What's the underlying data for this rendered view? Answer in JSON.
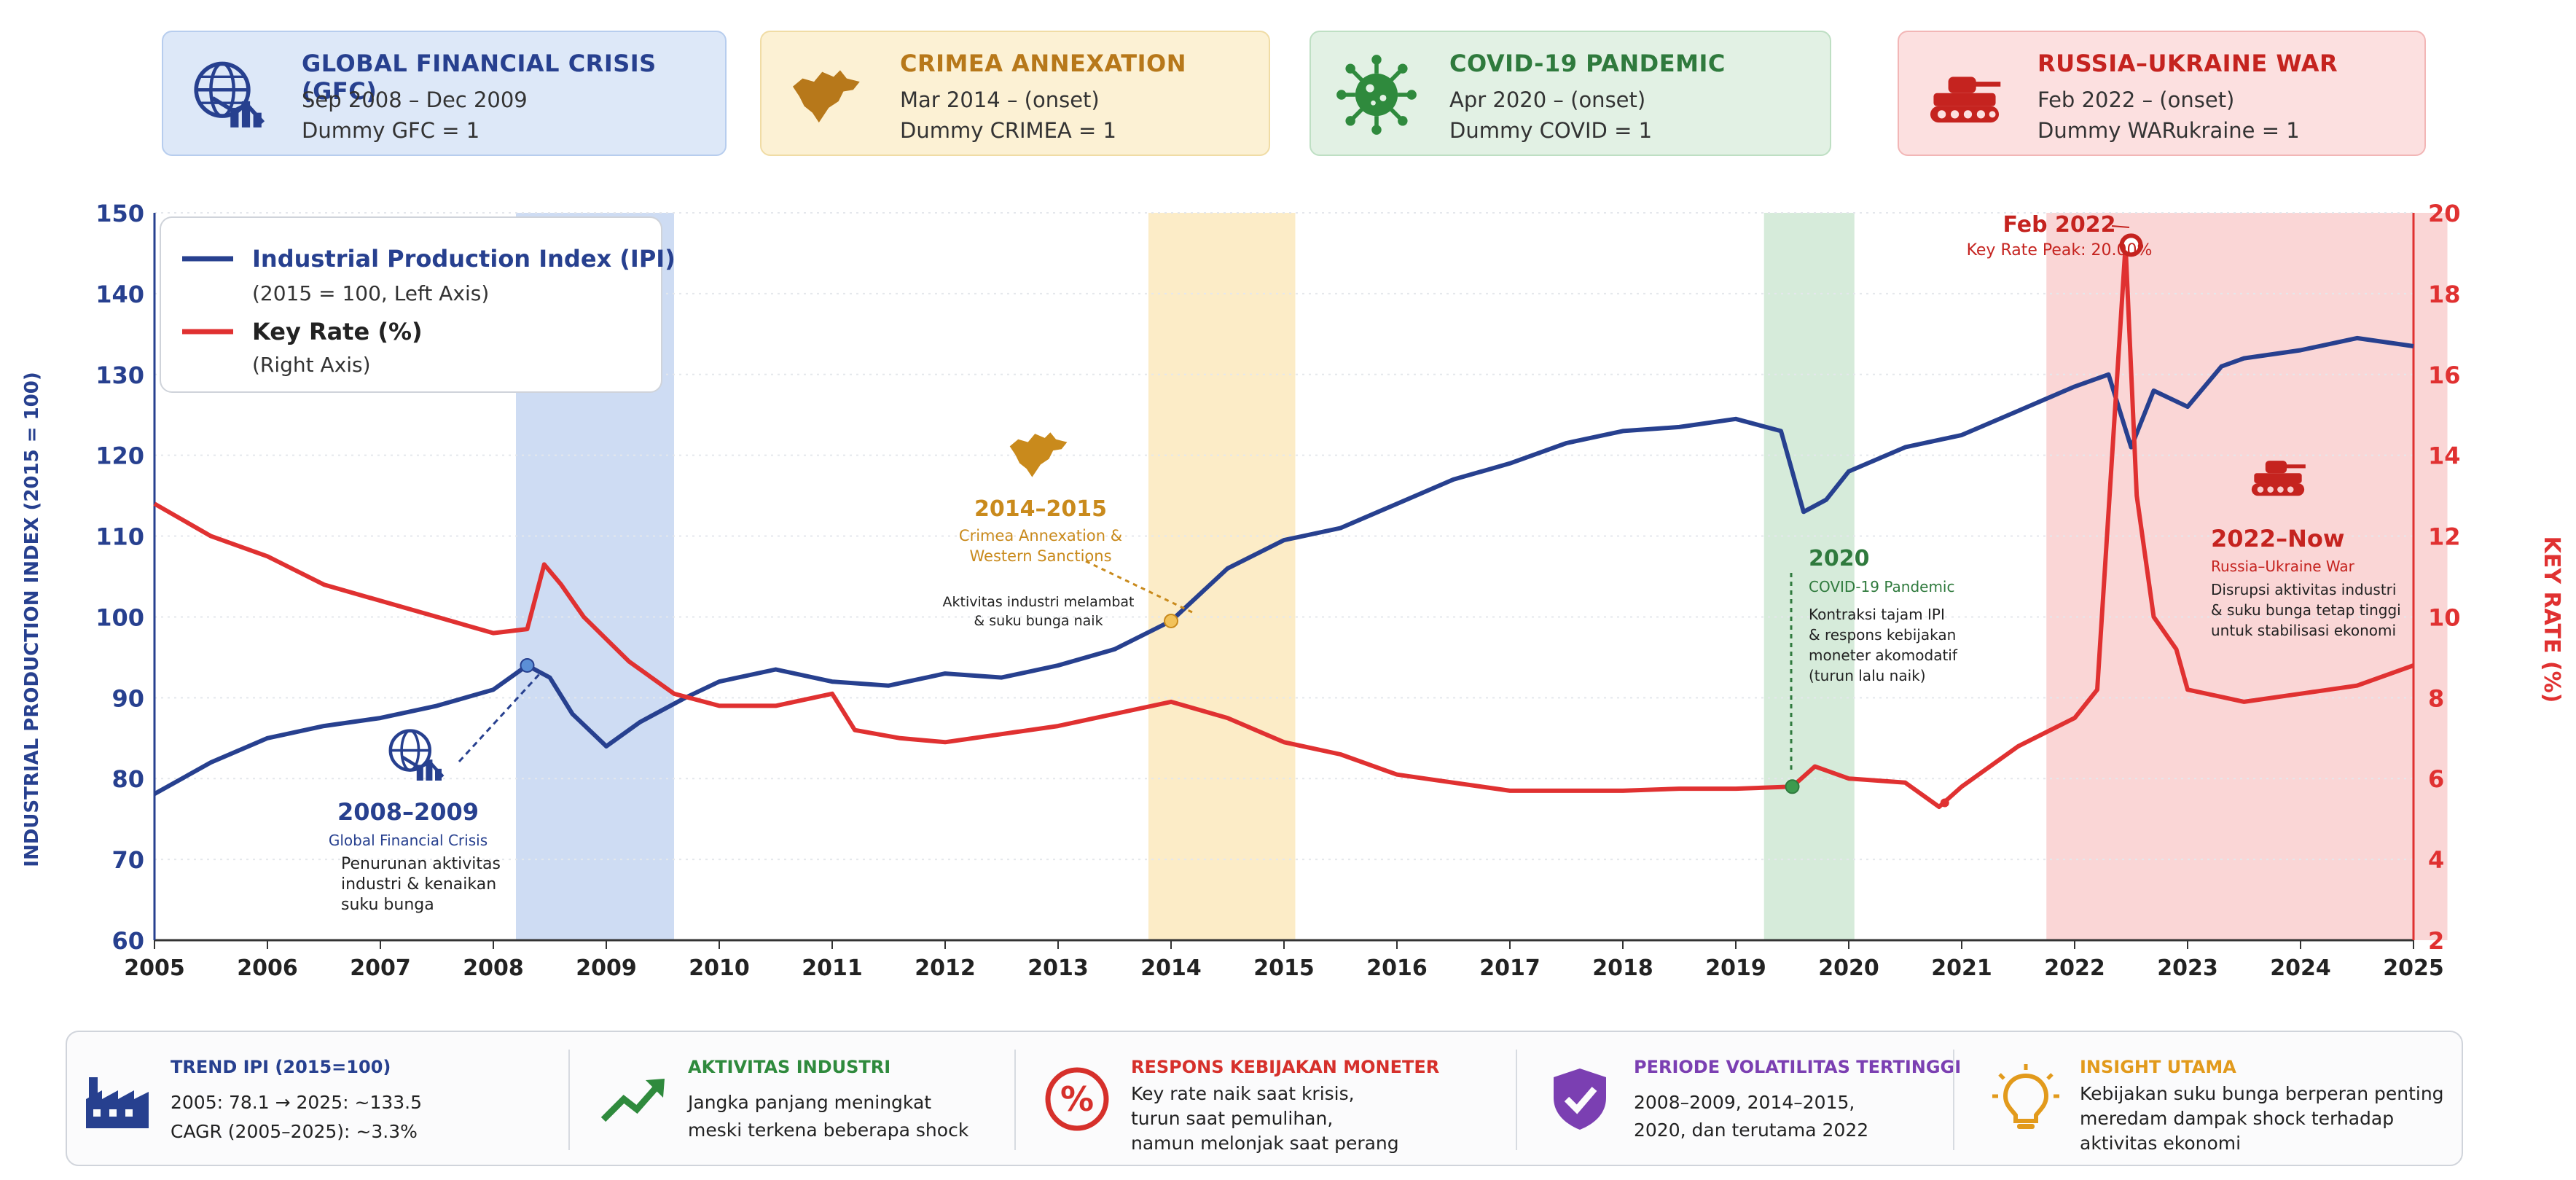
{
  "events": [
    {
      "id": "gfc",
      "title": "GLOBAL FINANCIAL CRISIS (GFC)",
      "line1": "Sep 2008 – Dec 2009",
      "line2": "Dummy GFC = 1",
      "icon": "chart-down-globe-icon",
      "color": "#27408f"
    },
    {
      "id": "crimea",
      "title": "CRIMEA ANNEXATION",
      "line1": "Mar 2014 – (onset)",
      "line2": "Dummy CRIMEA = 1",
      "icon": "crimea-map-icon",
      "color": "#b7781a"
    },
    {
      "id": "covid",
      "title": "COVID-19 PANDEMIC",
      "line1": "Apr 2020 – (onset)",
      "line2": "Dummy COVID = 1",
      "icon": "virus-icon",
      "color": "#2f7a3d"
    },
    {
      "id": "war",
      "title": "RUSSIA–UKRAINE WAR",
      "line1": "Feb 2022 – (onset)",
      "line2": "Dummy WARukraine = 1",
      "icon": "tank-icon",
      "color": "#c5231f"
    }
  ],
  "chart_data": {
    "type": "line",
    "x_range": [
      2005,
      2025
    ],
    "x_ticks": [
      "2005",
      "2006",
      "2007",
      "2008",
      "2009",
      "2010",
      "2011",
      "2012",
      "2013",
      "2014",
      "2015",
      "2016",
      "2017",
      "2018",
      "2019",
      "2020",
      "2021",
      "2022",
      "2023",
      "2024",
      "2025"
    ],
    "y_left": {
      "label": "INDUSTRIAL PRODUCTION INDEX (2015 = 100)",
      "range": [
        60,
        150
      ],
      "ticks": [
        "60",
        "70",
        "80",
        "90",
        "100",
        "110",
        "120",
        "130",
        "140",
        "150"
      ],
      "color": "#27408f"
    },
    "y_right": {
      "label": "KEY RATE (%)",
      "range": [
        2,
        20
      ],
      "ticks": [
        "2",
        "4",
        "6",
        "8",
        "10",
        "12",
        "14",
        "16",
        "18",
        "20"
      ],
      "color": "#e03131"
    },
    "legend": [
      {
        "name": "Industrial Production Index (IPI)",
        "sub": "(2015 = 100, Left Axis)",
        "color": "#27408f"
      },
      {
        "name": "Key Rate (%)",
        "sub": "(Right Axis)",
        "color": "#e03131"
      }
    ],
    "shaded_periods": [
      {
        "from": 2008.2,
        "to": 2009.6,
        "color": "#c6d6f1"
      },
      {
        "from": 2013.8,
        "to": 2015.1,
        "color": "#fbe9bd"
      },
      {
        "from": 2019.25,
        "to": 2020.05,
        "color": "#cfe7d3"
      },
      {
        "from": 2021.75,
        "to": 2025.3,
        "color": "#f9cfcf"
      }
    ],
    "series": [
      {
        "name": "Industrial Production Index (IPI)",
        "axis": "left",
        "color": "#27408f",
        "x": [
          2005.0,
          2005.5,
          2006.0,
          2006.5,
          2007.0,
          2007.5,
          2008.0,
          2008.3,
          2008.5,
          2008.7,
          2009.0,
          2009.3,
          2009.7,
          2010.0,
          2010.5,
          2011.0,
          2011.5,
          2012.0,
          2012.5,
          2013.0,
          2013.5,
          2014.0,
          2014.5,
          2015.0,
          2015.5,
          2016.0,
          2016.5,
          2017.0,
          2017.5,
          2018.0,
          2018.5,
          2019.0,
          2019.4,
          2019.6,
          2019.8,
          2020.0,
          2020.5,
          2021.0,
          2021.5,
          2022.0,
          2022.3,
          2022.5,
          2022.7,
          2023.0,
          2023.3,
          2023.5,
          2024.0,
          2024.5,
          2025.0
        ],
        "y": [
          78.1,
          82,
          85,
          86.5,
          87.5,
          89,
          91,
          94,
          92.5,
          88,
          84,
          87,
          90,
          92,
          93.5,
          92,
          91.5,
          93,
          92.5,
          94,
          96,
          99.5,
          106,
          109.5,
          111,
          114,
          117,
          119,
          121.5,
          123,
          123.5,
          124.5,
          123,
          113,
          114.5,
          118,
          121,
          122.5,
          125.5,
          128.5,
          130,
          121,
          128,
          126,
          131,
          132,
          133,
          134.5,
          133.5
        ]
      },
      {
        "name": "Key Rate (%)",
        "axis": "right",
        "color": "#e03131",
        "x": [
          2005.0,
          2005.5,
          2006.0,
          2006.5,
          2007.0,
          2007.5,
          2008.0,
          2008.3,
          2008.45,
          2008.6,
          2008.8,
          2009.2,
          2009.6,
          2010.0,
          2010.5,
          2011.0,
          2011.2,
          2011.6,
          2012.0,
          2012.5,
          2013.0,
          2013.5,
          2014.0,
          2014.5,
          2015.0,
          2015.5,
          2016.0,
          2016.5,
          2017.0,
          2017.5,
          2018.0,
          2018.5,
          2019.0,
          2019.5,
          2019.7,
          2020.0,
          2020.5,
          2020.8,
          2021.0,
          2021.5,
          2022.0,
          2022.2,
          2022.45,
          2022.55,
          2022.7,
          2022.9,
          2023.0,
          2023.5,
          2024.0,
          2024.5,
          2025.0
        ],
        "y": [
          12.8,
          12,
          11.5,
          10.8,
          10.4,
          10,
          9.6,
          9.7,
          11.3,
          10.8,
          10,
          8.9,
          8.1,
          7.8,
          7.8,
          8.1,
          7.2,
          7,
          6.9,
          7.1,
          7.3,
          7.6,
          7.9,
          7.5,
          6.9,
          6.6,
          6.1,
          5.9,
          5.7,
          5.7,
          5.7,
          5.75,
          5.75,
          5.8,
          6.3,
          6,
          5.9,
          5.3,
          5.8,
          6.8,
          7.5,
          8.2,
          19.2,
          13,
          10,
          9.2,
          8.2,
          7.9,
          8.1,
          8.3,
          8.8
        ]
      }
    ],
    "annotations": [
      {
        "id": "gfc",
        "year": "2008–2009",
        "title": "Global Financial Crisis",
        "lines": [
          "Penurunan aktivitas",
          "industri & kenaikan",
          "suku bunga"
        ],
        "color": "#27408f"
      },
      {
        "id": "crimea",
        "year": "2014–2015",
        "title1": "Crimea Annexation &",
        "title2": "Western Sanctions",
        "lines": [
          "Aktivitas industri melambat",
          "& suku bunga naik"
        ],
        "color": "#c98a1c"
      },
      {
        "id": "covid",
        "year": "2020",
        "title": "COVID-19 Pandemic",
        "lines": [
          "Kontraksi tajam IPI",
          "& respons kebijakan",
          "moneter akomodatif",
          "(turun lalu naik)"
        ],
        "color": "#2f7a3d"
      },
      {
        "id": "war",
        "year": "2022–Now",
        "title": "Russia–Ukraine War",
        "lines": [
          "Disrupsi aktivitas industri",
          "& suku bunga tetap tinggi",
          "untuk stabilisasi ekonomi"
        ],
        "color": "#c5231f"
      },
      {
        "id": "peak",
        "line1": "Feb 2022",
        "line2": "Key Rate Peak: 20.00%",
        "x": 2022.5,
        "y_rate": 19.2,
        "color": "#c5231f"
      }
    ]
  },
  "summary": [
    {
      "id": "trend",
      "title": "TREND IPI (2015=100)",
      "lines": [
        "2005: 78.1   →   2025: ~133.5",
        "CAGR (2005–2025): ~3.3%"
      ],
      "color": "#27408f",
      "icon": "factory-icon"
    },
    {
      "id": "activity",
      "title": "AKTIVITAS INDUSTRI",
      "lines": [
        "Jangka panjang meningkat",
        "meski terkena beberapa shock"
      ],
      "color": "#2f8a3d",
      "icon": "trend-up-icon"
    },
    {
      "id": "policy",
      "title": "RESPONS KEBIJAKAN MONETER",
      "lines": [
        "Key rate naik saat krisis,",
        "turun saat pemulihan,",
        "namun melonjak saat perang"
      ],
      "color": "#d6302b",
      "icon": "percent-icon"
    },
    {
      "id": "volatility",
      "title": "PERIODE VOLATILITAS TERTINGGI",
      "lines": [
        "2008–2009, 2014–2015,",
        "2020, dan terutama 2022"
      ],
      "color": "#7b3fb2",
      "icon": "shield-check-icon"
    },
    {
      "id": "insight",
      "title": "INSIGHT UTAMA",
      "lines": [
        "Kebijakan suku bunga berperan penting",
        "meredam dampak shock terhadap",
        "aktivitas ekonomi"
      ],
      "color": "#e29a1c",
      "icon": "lightbulb-icon"
    }
  ]
}
